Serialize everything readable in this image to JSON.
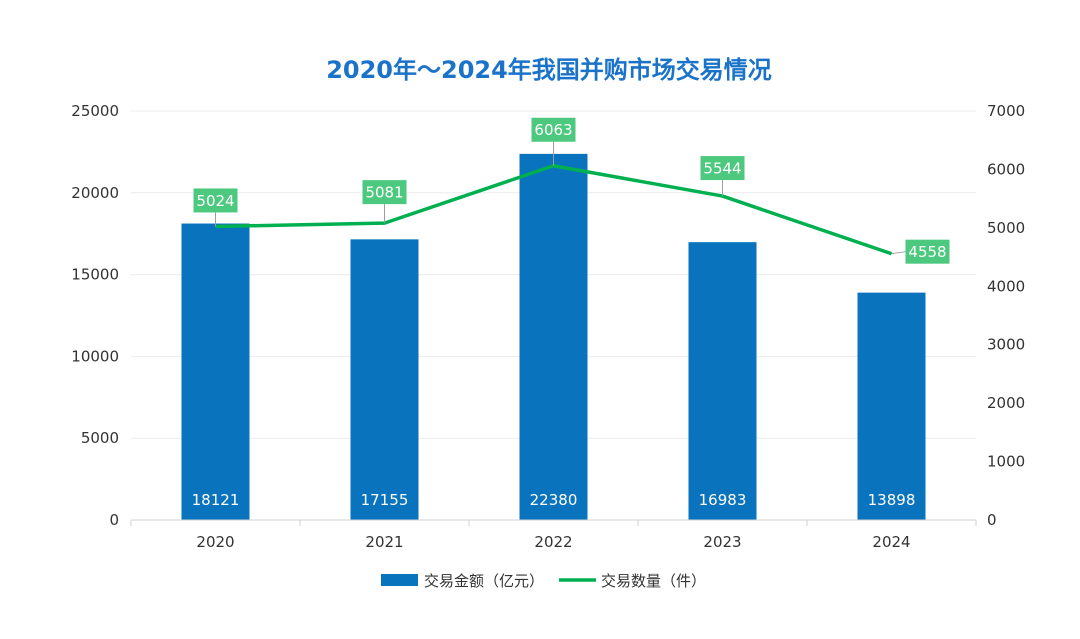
{
  "chart_data": {
    "type": "bar+line",
    "title": "2020年～2024年我国并购市场交易情况",
    "categories": [
      "2020",
      "2021",
      "2022",
      "2023",
      "2024"
    ],
    "series": [
      {
        "name": "交易金额（亿元）",
        "type": "bar",
        "axis": "left",
        "values": [
          18121,
          17155,
          22380,
          16983,
          13898
        ],
        "color": "#0a73be"
      },
      {
        "name": "交易数量（件）",
        "type": "line",
        "axis": "right",
        "values": [
          5024,
          5081,
          6063,
          5544,
          4558
        ],
        "color": "#00b050",
        "label_color": "#4cc97e"
      }
    ],
    "y_left": {
      "min": 0,
      "max": 25000,
      "ticks": [
        "0",
        "5000",
        "10000",
        "15000",
        "20000",
        "25000"
      ]
    },
    "y_right": {
      "min": 0,
      "max": 7000,
      "ticks": [
        "0",
        "1000",
        "2000",
        "3000",
        "4000",
        "5000",
        "6000",
        "7000"
      ]
    },
    "grid": true,
    "legend_position": "bottom-center"
  }
}
